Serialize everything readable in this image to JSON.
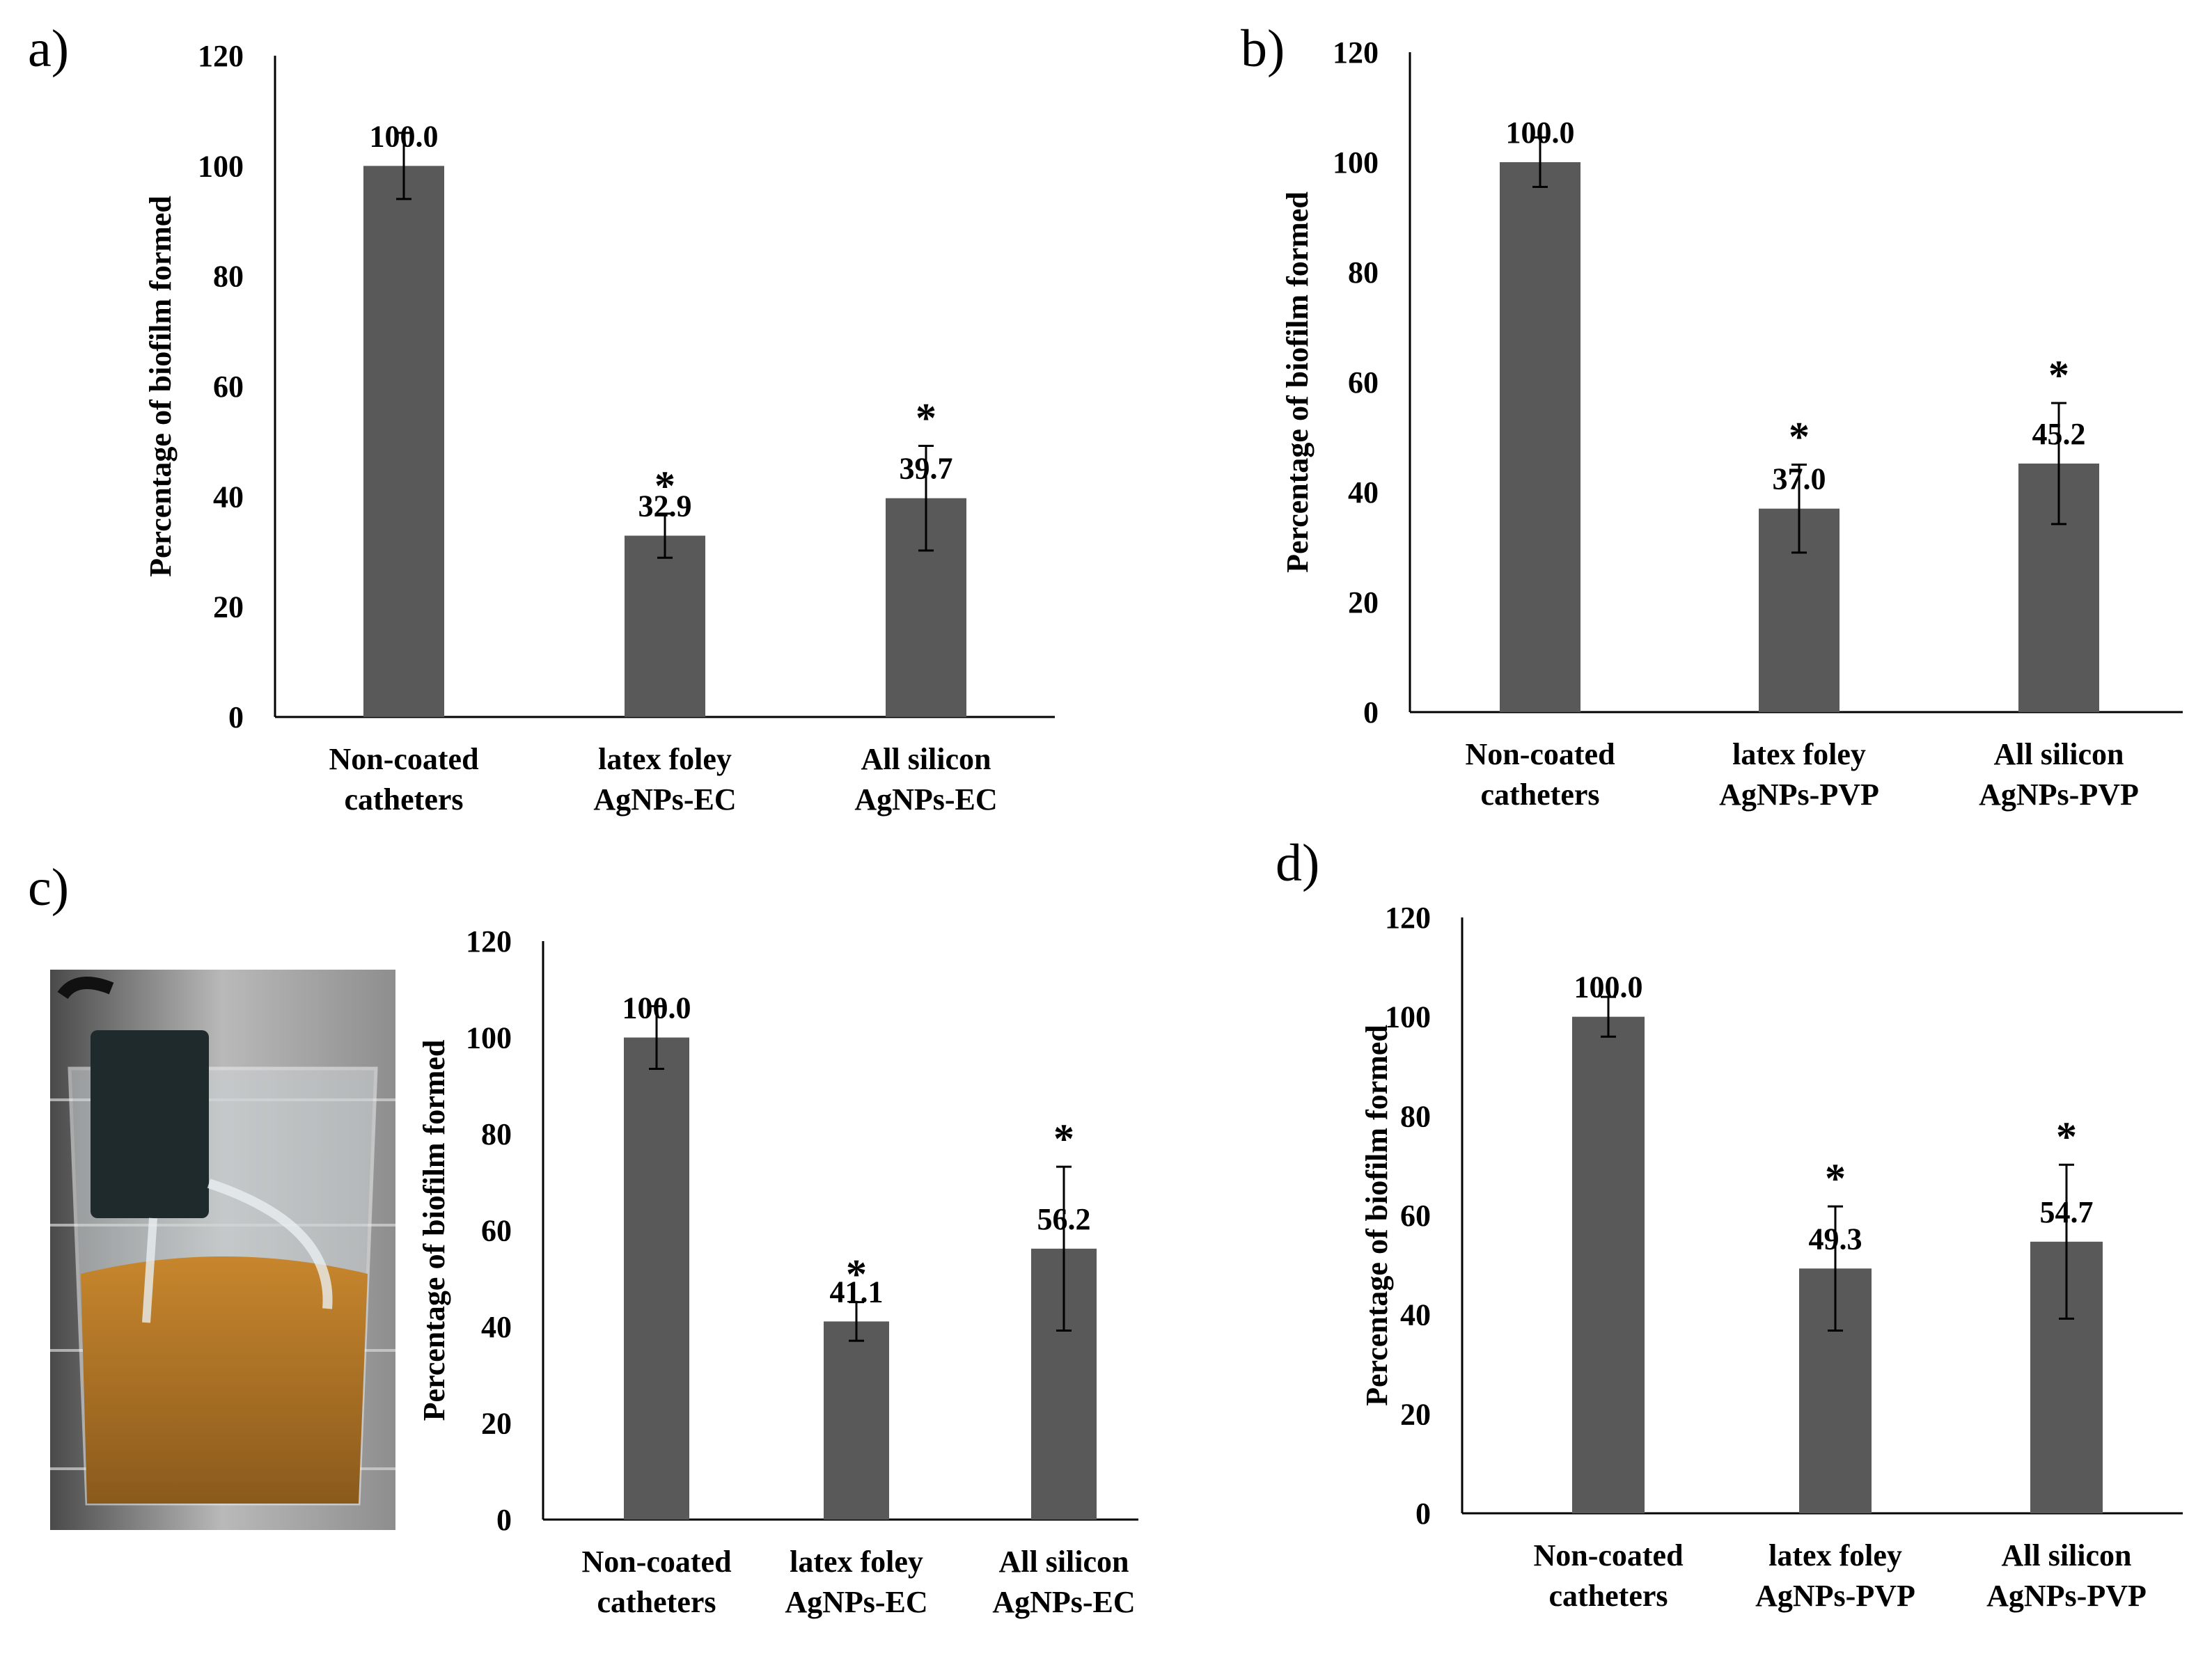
{
  "colors": {
    "bar": "#595959",
    "axis": "#000000",
    "error": "#000000"
  },
  "chart_data": [
    {
      "panel": "a)",
      "type": "bar",
      "ylabel": "Percentage of biofilm formed",
      "ylim": [
        0,
        120
      ],
      "yticks": [
        0,
        20,
        40,
        60,
        80,
        100,
        120
      ],
      "categories": [
        [
          "Non-coated",
          "catheters"
        ],
        [
          "latex foley",
          "AgNPs-EC"
        ],
        [
          "All silicon",
          "AgNPs-EC"
        ]
      ],
      "values": [
        100.0,
        32.9,
        39.7
      ],
      "value_labels": [
        "100.0",
        "32.9",
        "39.7"
      ],
      "error": [
        6,
        4,
        9.5
      ],
      "significance": [
        "",
        "*",
        "*"
      ]
    },
    {
      "panel": "b)",
      "type": "bar",
      "ylabel": "Percentage of biofilm formed",
      "ylim": [
        0,
        120
      ],
      "yticks": [
        0,
        20,
        40,
        60,
        80,
        100,
        120
      ],
      "categories": [
        [
          "Non-coated",
          "catheters"
        ],
        [
          "latex foley",
          "AgNPs-PVP"
        ],
        [
          "All silicon",
          "AgNPs-PVP"
        ]
      ],
      "values": [
        100.0,
        37.0,
        45.2
      ],
      "value_labels": [
        "100.0",
        "37.0",
        "45.2"
      ],
      "error": [
        4.5,
        8,
        11
      ],
      "significance": [
        "",
        "*",
        "*"
      ]
    },
    {
      "panel": "c)",
      "type": "bar",
      "ylabel": "Percentage of biofilm formed",
      "ylim": [
        0,
        120
      ],
      "yticks": [
        0,
        20,
        40,
        60,
        80,
        100,
        120
      ],
      "categories": [
        [
          "Non-coated",
          "catheters"
        ],
        [
          "latex foley",
          "AgNPs-EC"
        ],
        [
          "All silicon",
          "AgNPs-EC"
        ]
      ],
      "values": [
        100.0,
        41.1,
        56.2
      ],
      "value_labels": [
        "100.0",
        "41.1",
        "56.2"
      ],
      "error": [
        6.5,
        4,
        17
      ],
      "significance": [
        "",
        "*",
        "*"
      ]
    },
    {
      "panel": "d)",
      "type": "bar",
      "ylabel": "Percentage of biofilm formed",
      "ylim": [
        0,
        120
      ],
      "yticks": [
        0,
        20,
        40,
        60,
        80,
        100,
        120
      ],
      "categories": [
        [
          "Non-coated",
          "catheters"
        ],
        [
          "latex foley",
          "AgNPs-PVP"
        ],
        [
          "All silicon",
          "AgNPs-PVP"
        ]
      ],
      "values": [
        100.0,
        49.3,
        54.7
      ],
      "value_labels": [
        "100.0",
        "49.3",
        "54.7"
      ],
      "error": [
        4,
        12.5,
        15.5
      ],
      "significance": [
        "",
        "*",
        "*"
      ]
    }
  ]
}
